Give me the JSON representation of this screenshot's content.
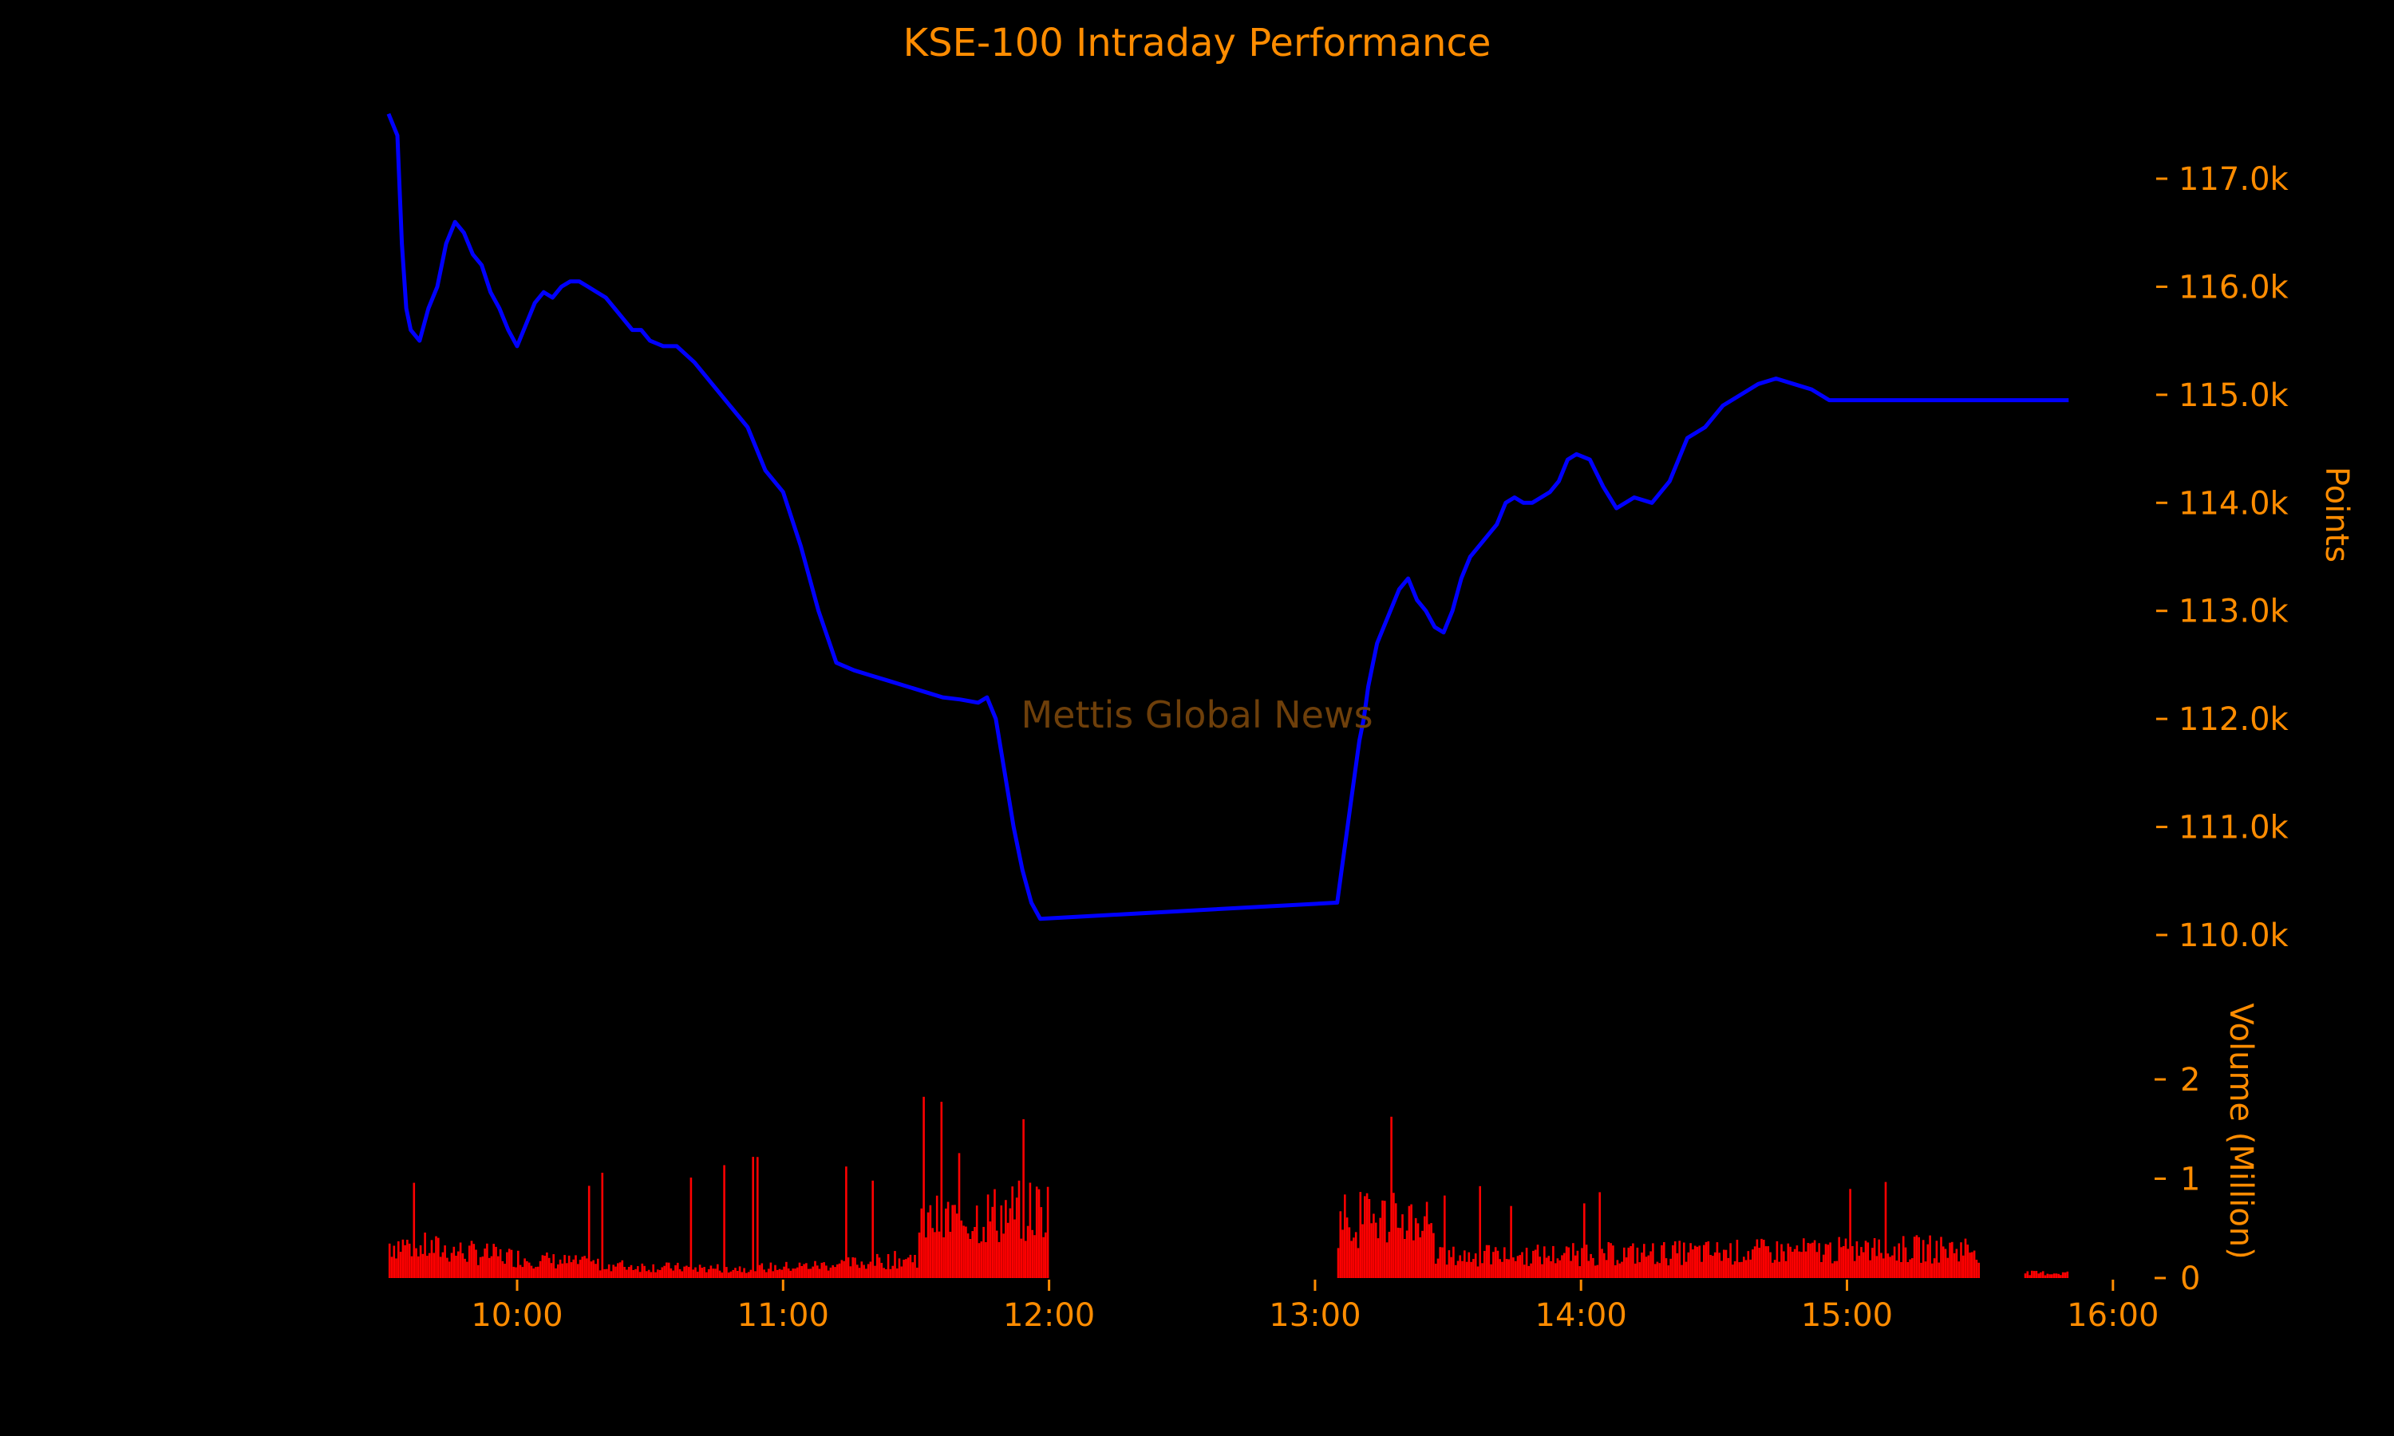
{
  "chart_data": {
    "type": "line",
    "title": "KSE-100 Intraday Performance",
    "watermark": "Mettis Global News",
    "x_axis": {
      "ticks": [
        "10:00",
        "11:00",
        "12:00",
        "13:00",
        "14:00",
        "15:00",
        "16:00"
      ],
      "range": [
        "09:30",
        "16:00"
      ]
    },
    "price_axis": {
      "label": "Points",
      "side": "right",
      "ticks": [
        "110.0k",
        "111.0k",
        "112.0k",
        "113.0k",
        "114.0k",
        "115.0k",
        "116.0k",
        "117.0k"
      ],
      "ylim": [
        109700,
        117800
      ]
    },
    "volume_axis": {
      "label": "Volume (Million)",
      "side": "right",
      "ticks": [
        "0",
        "1",
        "2"
      ],
      "ylim": [
        0,
        2.9
      ]
    },
    "colors": {
      "price_line": "#0000ff",
      "volume_bars": "#ff0000",
      "text": "#ff8c00",
      "background": "#000000"
    },
    "series": [
      {
        "name": "",
        "kind": "line",
        "x": [
          "09:31",
          "09:33",
          "09:34",
          "09:35",
          "09:36",
          "09:38",
          "09:40",
          "09:42",
          "09:44",
          "09:46",
          "09:48",
          "09:50",
          "09:52",
          "09:54",
          "09:56",
          "09:58",
          "10:00",
          "10:02",
          "10:04",
          "10:06",
          "10:08",
          "10:10",
          "10:12",
          "10:14",
          "10:16",
          "10:18",
          "10:20",
          "10:22",
          "10:24",
          "10:26",
          "10:28",
          "10:30",
          "10:33",
          "10:36",
          "10:40",
          "10:44",
          "10:48",
          "10:52",
          "10:56",
          "11:00",
          "11:04",
          "11:08",
          "11:12",
          "11:16",
          "11:20",
          "11:24",
          "11:28",
          "11:32",
          "11:36",
          "11:40",
          "11:44",
          "11:46",
          "11:48",
          "11:50",
          "11:52",
          "11:54",
          "11:56",
          "11:58",
          "13:05",
          "13:06",
          "13:07",
          "13:08",
          "13:09",
          "13:10",
          "13:11",
          "13:12",
          "13:13",
          "13:14",
          "13:15",
          "13:17",
          "13:19",
          "13:21",
          "13:23",
          "13:25",
          "13:27",
          "13:29",
          "13:31",
          "13:33",
          "13:35",
          "13:37",
          "13:39",
          "13:41",
          "13:43",
          "13:45",
          "13:47",
          "13:49",
          "13:51",
          "13:53",
          "13:55",
          "13:57",
          "13:59",
          "14:02",
          "14:05",
          "14:08",
          "14:12",
          "14:16",
          "14:20",
          "14:24",
          "14:28",
          "14:32",
          "14:36",
          "14:40",
          "14:44",
          "14:48",
          "14:52",
          "14:56",
          "15:00",
          "15:04",
          "15:08",
          "15:12",
          "15:16",
          "15:20",
          "15:24",
          "15:28",
          "15:30",
          "15:50"
        ],
        "y": [
          117600,
          117400,
          116400,
          115800,
          115600,
          115500,
          115800,
          116000,
          116400,
          116600,
          116500,
          116300,
          116200,
          115950,
          115800,
          115600,
          115450,
          115650,
          115850,
          115950,
          115900,
          116000,
          116050,
          116050,
          116000,
          115950,
          115900,
          115800,
          115700,
          115600,
          115600,
          115500,
          115450,
          115450,
          115300,
          115100,
          114900,
          114700,
          114300,
          114100,
          113600,
          113000,
          112520,
          112450,
          112400,
          112350,
          112300,
          112250,
          112200,
          112180,
          112150,
          112200,
          112000,
          111500,
          111000,
          110600,
          110300,
          110150,
          110300,
          110600,
          110900,
          111200,
          111500,
          111800,
          112000,
          112300,
          112500,
          112700,
          112800,
          113000,
          113200,
          113300,
          113100,
          113000,
          112850,
          112800,
          113000,
          113300,
          113500,
          113600,
          113700,
          113800,
          114000,
          114050,
          114000,
          114000,
          114050,
          114100,
          114200,
          114400,
          114450,
          114400,
          114150,
          113950,
          114050,
          114000,
          114200,
          114600,
          114700,
          114900,
          115000,
          115100,
          115150,
          115100,
          115050,
          114950,
          114950,
          114950,
          114950,
          114950,
          114950,
          114950,
          114950,
          114950,
          114950,
          114950
        ]
      },
      {
        "name": "",
        "kind": "bar",
        "note_values_in_million": true,
        "sessions": [
          [
            "09:31",
            "12:00"
          ],
          [
            "13:05",
            "15:30"
          ],
          [
            "15:40",
            "15:50"
          ]
        ]
      }
    ]
  }
}
